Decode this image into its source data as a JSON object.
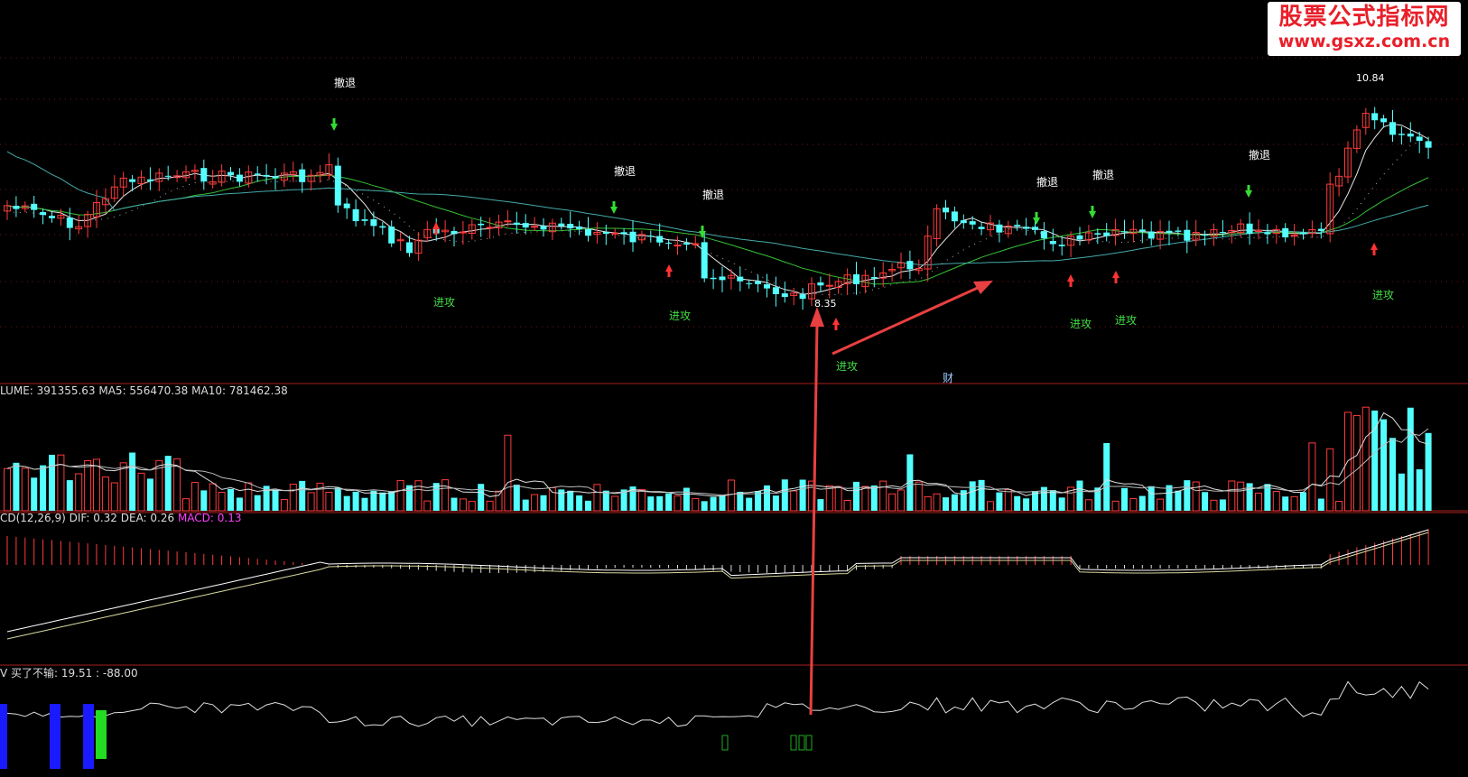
{
  "watermark": {
    "title": "股票公式指标网",
    "url": "www.gsxz.com.cn"
  },
  "signals": {
    "retreat": "撤退",
    "attack": "进攻",
    "cai": "财"
  },
  "price_labels": {
    "high": "10.84",
    "low": "8.35"
  },
  "volume_header": "LUME: 391355.63  MA5: 556470.38  MA10: 781462.38",
  "macd_header": {
    "prefix": "CD(12,26,9)  DIF: 0.32  DEA: 0.26  ",
    "macd": "MACD: 0.13"
  },
  "indicator_header": "V  买了不输: 19.51  : -88.00",
  "colors": {
    "up": "#ff3b3b",
    "down": "#54ffff",
    "ma_white": "#e8e8e8",
    "ma_green": "#35c235",
    "ma_teal": "#44aaaa",
    "grid": "#aa1f1f",
    "macd_label": "#ff40ff",
    "arrow": "#e84040",
    "signal_green": "#33dd33"
  }
}
